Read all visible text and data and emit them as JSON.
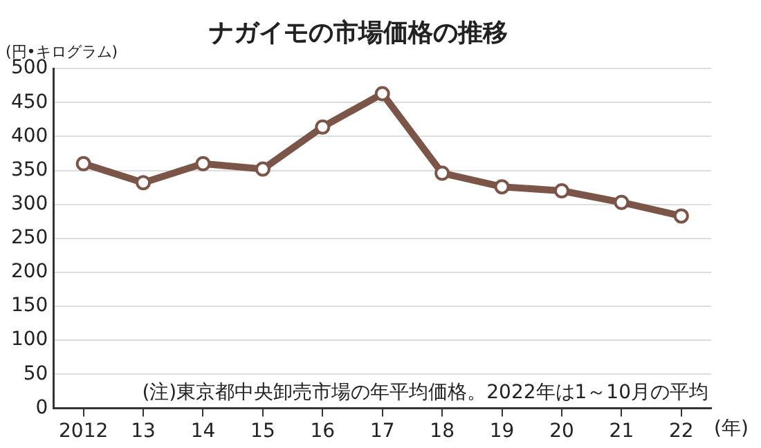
{
  "chart_data": {
    "type": "line",
    "title": "ナガイモの市場価格の推移",
    "ylabel": "(円•キログラム)",
    "xlabel": "(年)",
    "categories": [
      "2012",
      "13",
      "14",
      "15",
      "16",
      "17",
      "18",
      "19",
      "20",
      "21",
      "22"
    ],
    "series": [
      {
        "color": "#7b5648",
        "values": [
          360,
          332,
          360,
          352,
          414,
          463,
          346,
          326,
          320,
          303,
          283
        ]
      }
    ],
    "ylim": [
      0,
      500
    ],
    "yticks": [
      0,
      50,
      100,
      150,
      200,
      250,
      300,
      350,
      400,
      450,
      500
    ],
    "grid": "y",
    "marker": "circle",
    "line_style": "solid",
    "annotations": [
      "(注)東京都中央卸売市場の年平均価格。2022年は1～10月の平均"
    ]
  }
}
